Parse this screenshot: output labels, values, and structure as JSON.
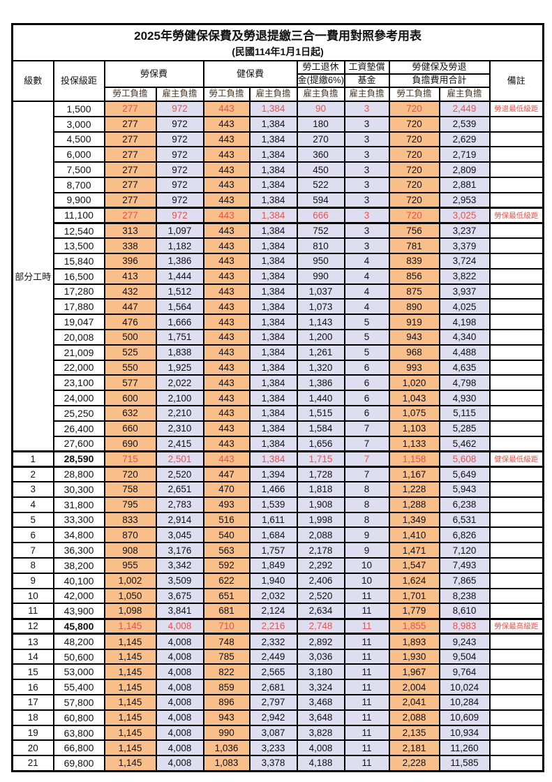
{
  "title": "2025年勞健保保費及勞退提繳三合一費用對照參考用表",
  "subtitle": "(民國114年1月1日起)",
  "colors": {
    "employee_bg": "#f9bf8b",
    "employer_bg": "#dfdef0",
    "highlight_text": "#e8534b",
    "border": "#000000"
  },
  "header": {
    "level": "級數",
    "salary": "投保級距",
    "labor_insurance": "勞保費",
    "health_insurance": "健保費",
    "pension_line1": "勞工退休",
    "pension_line2": "金(提繳6%)",
    "wage_fund_line1": "工資墊償",
    "wage_fund_line2": "基金",
    "total_line1": "勞健保及勞退",
    "total_line2": "負擔費用合計",
    "remark": "備註",
    "employee": "勞工負擔",
    "employer": "雇主負擔"
  },
  "part_time_label": "部分工時",
  "part_time_row_count": 23,
  "rows": [
    {
      "level": null,
      "salary": "1,500",
      "values": [
        "277",
        "972",
        "443",
        "1,384",
        "90",
        "3",
        "720",
        "2,449"
      ],
      "remark": "勞退最低級距",
      "highlight": true
    },
    {
      "level": null,
      "salary": "3,000",
      "values": [
        "277",
        "972",
        "443",
        "1,384",
        "180",
        "3",
        "720",
        "2,539"
      ],
      "remark": ""
    },
    {
      "level": null,
      "salary": "4,500",
      "values": [
        "277",
        "972",
        "443",
        "1,384",
        "270",
        "3",
        "720",
        "2,629"
      ],
      "remark": ""
    },
    {
      "level": null,
      "salary": "6,000",
      "values": [
        "277",
        "972",
        "443",
        "1,384",
        "360",
        "3",
        "720",
        "2,719"
      ],
      "remark": ""
    },
    {
      "level": null,
      "salary": "7,500",
      "values": [
        "277",
        "972",
        "443",
        "1,384",
        "450",
        "3",
        "720",
        "2,809"
      ],
      "remark": ""
    },
    {
      "level": null,
      "salary": "8,700",
      "values": [
        "277",
        "972",
        "443",
        "1,384",
        "522",
        "3",
        "720",
        "2,881"
      ],
      "remark": ""
    },
    {
      "level": null,
      "salary": "9,900",
      "values": [
        "277",
        "972",
        "443",
        "1,384",
        "594",
        "3",
        "720",
        "2,953"
      ],
      "remark": ""
    },
    {
      "level": null,
      "salary": "11,100",
      "values": [
        "277",
        "972",
        "443",
        "1,384",
        "666",
        "3",
        "720",
        "3,025"
      ],
      "remark": "勞保最低級距",
      "highlight": true,
      "frame": true
    },
    {
      "level": null,
      "salary": "12,540",
      "values": [
        "313",
        "1,097",
        "443",
        "1,384",
        "752",
        "3",
        "756",
        "3,237"
      ],
      "remark": ""
    },
    {
      "level": null,
      "salary": "13,500",
      "values": [
        "338",
        "1,182",
        "443",
        "1,384",
        "810",
        "3",
        "781",
        "3,379"
      ],
      "remark": ""
    },
    {
      "level": null,
      "salary": "15,840",
      "values": [
        "396",
        "1,386",
        "443",
        "1,384",
        "950",
        "4",
        "839",
        "3,724"
      ],
      "remark": ""
    },
    {
      "level": null,
      "salary": "16,500",
      "values": [
        "413",
        "1,444",
        "443",
        "1,384",
        "990",
        "4",
        "856",
        "3,822"
      ],
      "remark": ""
    },
    {
      "level": null,
      "salary": "17,280",
      "values": [
        "432",
        "1,512",
        "443",
        "1,384",
        "1,037",
        "4",
        "875",
        "3,937"
      ],
      "remark": ""
    },
    {
      "level": null,
      "salary": "17,880",
      "values": [
        "447",
        "1,564",
        "443",
        "1,384",
        "1,073",
        "4",
        "890",
        "4,025"
      ],
      "remark": ""
    },
    {
      "level": null,
      "salary": "19,047",
      "values": [
        "476",
        "1,666",
        "443",
        "1,384",
        "1,143",
        "5",
        "919",
        "4,198"
      ],
      "remark": ""
    },
    {
      "level": null,
      "salary": "20,008",
      "values": [
        "500",
        "1,751",
        "443",
        "1,384",
        "1,200",
        "5",
        "943",
        "4,340"
      ],
      "remark": ""
    },
    {
      "level": null,
      "salary": "21,009",
      "values": [
        "525",
        "1,838",
        "443",
        "1,384",
        "1,261",
        "5",
        "968",
        "4,488"
      ],
      "remark": ""
    },
    {
      "level": null,
      "salary": "22,000",
      "values": [
        "550",
        "1,925",
        "443",
        "1,384",
        "1,320",
        "6",
        "993",
        "4,635"
      ],
      "remark": ""
    },
    {
      "level": null,
      "salary": "23,100",
      "values": [
        "577",
        "2,022",
        "443",
        "1,384",
        "1,386",
        "6",
        "1,020",
        "4,798"
      ],
      "remark": ""
    },
    {
      "level": null,
      "salary": "24,000",
      "values": [
        "600",
        "2,100",
        "443",
        "1,384",
        "1,440",
        "6",
        "1,043",
        "4,930"
      ],
      "remark": ""
    },
    {
      "level": null,
      "salary": "25,250",
      "values": [
        "632",
        "2,210",
        "443",
        "1,384",
        "1,515",
        "6",
        "1,075",
        "5,115"
      ],
      "remark": ""
    },
    {
      "level": null,
      "salary": "26,400",
      "values": [
        "660",
        "2,310",
        "443",
        "1,384",
        "1,584",
        "7",
        "1,103",
        "5,285"
      ],
      "remark": ""
    },
    {
      "level": null,
      "salary": "27,600",
      "values": [
        "690",
        "2,415",
        "443",
        "1,384",
        "1,656",
        "7",
        "1,133",
        "5,462"
      ],
      "remark": ""
    },
    {
      "level": "1",
      "salary": "28,590",
      "values": [
        "715",
        "2,501",
        "443",
        "1,384",
        "1,715",
        "7",
        "1,158",
        "5,608"
      ],
      "remark": "健保最低級距",
      "highlight": true,
      "frame": true,
      "salary_bold": true
    },
    {
      "level": "2",
      "salary": "28,800",
      "values": [
        "720",
        "2,520",
        "447",
        "1,394",
        "1,728",
        "7",
        "1,167",
        "5,649"
      ],
      "remark": ""
    },
    {
      "level": "3",
      "salary": "30,300",
      "values": [
        "758",
        "2,651",
        "470",
        "1,466",
        "1,818",
        "8",
        "1,228",
        "5,943"
      ],
      "remark": ""
    },
    {
      "level": "4",
      "salary": "31,800",
      "values": [
        "795",
        "2,783",
        "493",
        "1,539",
        "1,908",
        "8",
        "1,288",
        "6,238"
      ],
      "remark": ""
    },
    {
      "level": "5",
      "salary": "33,300",
      "values": [
        "833",
        "2,914",
        "516",
        "1,611",
        "1,998",
        "8",
        "1,349",
        "6,531"
      ],
      "remark": ""
    },
    {
      "level": "6",
      "salary": "34,800",
      "values": [
        "870",
        "3,045",
        "540",
        "1,684",
        "2,088",
        "9",
        "1,410",
        "6,826"
      ],
      "remark": ""
    },
    {
      "level": "7",
      "salary": "36,300",
      "values": [
        "908",
        "3,176",
        "563",
        "1,757",
        "2,178",
        "9",
        "1,471",
        "7,120"
      ],
      "remark": ""
    },
    {
      "level": "8",
      "salary": "38,200",
      "values": [
        "955",
        "3,342",
        "592",
        "1,849",
        "2,292",
        "10",
        "1,547",
        "7,493"
      ],
      "remark": ""
    },
    {
      "level": "9",
      "salary": "40,100",
      "values": [
        "1,002",
        "3,509",
        "622",
        "1,940",
        "2,406",
        "10",
        "1,624",
        "7,865"
      ],
      "remark": ""
    },
    {
      "level": "10",
      "salary": "42,000",
      "values": [
        "1,050",
        "3,675",
        "651",
        "2,032",
        "2,520",
        "11",
        "1,701",
        "8,238"
      ],
      "remark": ""
    },
    {
      "level": "11",
      "salary": "43,900",
      "values": [
        "1,098",
        "3,841",
        "681",
        "2,124",
        "2,634",
        "11",
        "1,779",
        "8,610"
      ],
      "remark": ""
    },
    {
      "level": "12",
      "salary": "45,800",
      "values": [
        "1,145",
        "4,008",
        "710",
        "2,216",
        "2,748",
        "11",
        "1,855",
        "8,983"
      ],
      "remark": "勞保最高級距",
      "highlight": true,
      "frame": true,
      "salary_bold": true
    },
    {
      "level": "13",
      "salary": "48,200",
      "values": [
        "1,145",
        "4,008",
        "748",
        "2,332",
        "2,892",
        "11",
        "1,893",
        "9,243"
      ],
      "remark": ""
    },
    {
      "level": "14",
      "salary": "50,600",
      "values": [
        "1,145",
        "4,008",
        "785",
        "2,449",
        "3,036",
        "11",
        "1,930",
        "9,504"
      ],
      "remark": ""
    },
    {
      "level": "15",
      "salary": "53,000",
      "values": [
        "1,145",
        "4,008",
        "822",
        "2,565",
        "3,180",
        "11",
        "1,967",
        "9,764"
      ],
      "remark": ""
    },
    {
      "level": "16",
      "salary": "55,400",
      "values": [
        "1,145",
        "4,008",
        "859",
        "2,681",
        "3,324",
        "11",
        "2,004",
        "10,024"
      ],
      "remark": ""
    },
    {
      "level": "17",
      "salary": "57,800",
      "values": [
        "1,145",
        "4,008",
        "896",
        "2,797",
        "3,468",
        "11",
        "2,041",
        "10,284"
      ],
      "remark": ""
    },
    {
      "level": "18",
      "salary": "60,800",
      "values": [
        "1,145",
        "4,008",
        "943",
        "2,942",
        "3,648",
        "11",
        "2,088",
        "10,609"
      ],
      "remark": ""
    },
    {
      "level": "19",
      "salary": "63,800",
      "values": [
        "1,145",
        "4,008",
        "990",
        "3,087",
        "3,828",
        "11",
        "2,135",
        "10,934"
      ],
      "remark": ""
    },
    {
      "level": "20",
      "salary": "66,800",
      "values": [
        "1,145",
        "4,008",
        "1,036",
        "3,233",
        "4,008",
        "11",
        "2,181",
        "11,260"
      ],
      "remark": ""
    },
    {
      "level": "21",
      "salary": "69,800",
      "values": [
        "1,145",
        "4,008",
        "1,083",
        "3,378",
        "4,188",
        "11",
        "2,228",
        "11,585"
      ],
      "remark": ""
    }
  ]
}
